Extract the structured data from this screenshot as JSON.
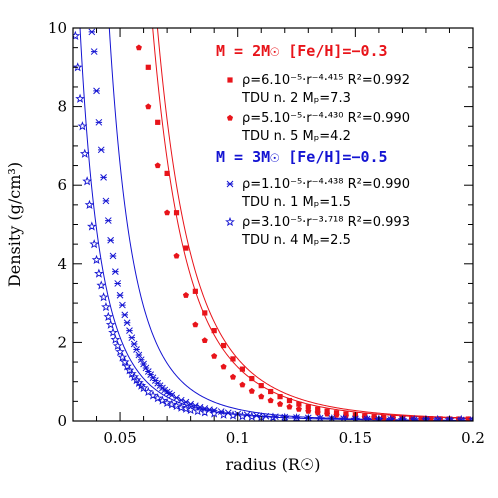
{
  "chart_data": {
    "type": "scatter",
    "xlabel": "radius (R☉)",
    "ylabel": "Density (g/cm³)",
    "xlim": [
      0.03,
      0.2
    ],
    "ylim": [
      0,
      10
    ],
    "xticks": [
      0.05,
      0.1,
      0.15,
      0.2
    ],
    "xtick_labels": [
      "0.05",
      "0.1",
      "0.15",
      "0.2"
    ],
    "yticks": [
      0,
      2,
      4,
      6,
      8,
      10
    ],
    "ytick_labels": [
      "0",
      "2",
      "4",
      "6",
      "8",
      "10"
    ],
    "grid": false,
    "legend_placement": "top-right",
    "colors": {
      "red": "#e8141a",
      "blue": "#1414d2"
    },
    "groups": [
      {
        "header": "M = 2M☉ [Fe/H]=−0.3",
        "color": "#e8141a"
      },
      {
        "header": "M = 3M☉ [Fe/H]=−0.5",
        "color": "#1414d2"
      }
    ],
    "series": [
      {
        "name": "TDU n. 2 Mₚ=7.3",
        "fit_label": "ρ=6.10⁻⁵·r⁻⁴·⁴¹⁵ R²=0.992",
        "tdu_label": "TDU n. 2 Mₚ=7.3",
        "marker": "square",
        "color": "#e8141a",
        "fit": {
          "a": 6.1e-05,
          "b": 4.415
        },
        "x": [
          0.062,
          0.066,
          0.07,
          0.074,
          0.078,
          0.082,
          0.086,
          0.09,
          0.094,
          0.098,
          0.102,
          0.106,
          0.11,
          0.114,
          0.118,
          0.122,
          0.126,
          0.13,
          0.134,
          0.138,
          0.142,
          0.146,
          0.15,
          0.154,
          0.158,
          0.162,
          0.166,
          0.17,
          0.174,
          0.178,
          0.182,
          0.186,
          0.19,
          0.194,
          0.198
        ],
        "y": [
          9.0,
          7.6,
          6.3,
          5.3,
          4.4,
          3.3,
          2.75,
          2.3,
          1.92,
          1.58,
          1.32,
          1.08,
          0.9,
          0.75,
          0.62,
          0.52,
          0.43,
          0.36,
          0.3,
          0.25,
          0.21,
          0.18,
          0.15,
          0.13,
          0.11,
          0.1,
          0.09,
          0.08,
          0.07,
          0.065,
          0.06,
          0.055,
          0.05,
          0.05,
          0.05
        ]
      },
      {
        "name": "TDU n. 5 Mₚ=4.2",
        "fit_label": "ρ=5.10⁻⁵·r⁻⁴·⁴³⁰ R²=0.990",
        "tdu_label": "TDU n. 5 Mₚ=4.2",
        "marker": "pentagon",
        "color": "#e8141a",
        "fit": {
          "a": 5.1e-05,
          "b": 4.43
        },
        "x": [
          0.058,
          0.062,
          0.066,
          0.07,
          0.074,
          0.078,
          0.082,
          0.086,
          0.09,
          0.094,
          0.098,
          0.102,
          0.106,
          0.11,
          0.114,
          0.118,
          0.122,
          0.126,
          0.13,
          0.134,
          0.138,
          0.142,
          0.146,
          0.15,
          0.154,
          0.158,
          0.162,
          0.166,
          0.17,
          0.174,
          0.178,
          0.182,
          0.186,
          0.19,
          0.194,
          0.198
        ],
        "y": [
          9.5,
          8.0,
          6.5,
          5.3,
          4.2,
          3.2,
          2.45,
          2.05,
          1.65,
          1.38,
          1.12,
          0.92,
          0.76,
          0.62,
          0.52,
          0.43,
          0.36,
          0.3,
          0.25,
          0.21,
          0.18,
          0.15,
          0.13,
          0.11,
          0.1,
          0.09,
          0.08,
          0.07,
          0.06,
          0.055,
          0.05,
          0.045,
          0.04,
          0.04,
          0.04,
          0.04
        ]
      },
      {
        "name": "TDU n. 1 Mₚ=1.5",
        "fit_label": "ρ=1.10⁻⁵·r⁻⁴·⁴³⁸ R²=0.990",
        "tdu_label": "TDU n. 1 Mₚ=1.5",
        "marker": "star4",
        "color": "#1414d2",
        "fit": {
          "a": 1.1e-05,
          "b": 4.438
        },
        "x": [
          0.038,
          0.039,
          0.04,
          0.041,
          0.042,
          0.043,
          0.044,
          0.045,
          0.046,
          0.047,
          0.048,
          0.049,
          0.05,
          0.051,
          0.052,
          0.053,
          0.054,
          0.055,
          0.056,
          0.057,
          0.058,
          0.059,
          0.06,
          0.061,
          0.062,
          0.063,
          0.064,
          0.065,
          0.066,
          0.067,
          0.068,
          0.069,
          0.07,
          0.071,
          0.072,
          0.074,
          0.076,
          0.078,
          0.08,
          0.082,
          0.084,
          0.086,
          0.088,
          0.09,
          0.093,
          0.096,
          0.1,
          0.104,
          0.108,
          0.112,
          0.116,
          0.12,
          0.125,
          0.13,
          0.135,
          0.14,
          0.145,
          0.15,
          0.155,
          0.16,
          0.165,
          0.17,
          0.175,
          0.18,
          0.185,
          0.19,
          0.195,
          0.2
        ],
        "y": [
          9.9,
          9.4,
          8.4,
          7.6,
          6.9,
          6.2,
          5.6,
          5.1,
          4.6,
          4.2,
          3.8,
          3.5,
          3.2,
          2.95,
          2.7,
          2.5,
          2.3,
          2.12,
          1.96,
          1.82,
          1.68,
          1.56,
          1.45,
          1.35,
          1.26,
          1.18,
          1.1,
          1.03,
          0.96,
          0.9,
          0.84,
          0.79,
          0.74,
          0.7,
          0.66,
          0.59,
          0.53,
          0.48,
          0.43,
          0.39,
          0.35,
          0.32,
          0.29,
          0.27,
          0.24,
          0.21,
          0.18,
          0.16,
          0.14,
          0.12,
          0.11,
          0.1,
          0.09,
          0.08,
          0.07,
          0.065,
          0.06,
          0.055,
          0.05,
          0.045,
          0.04,
          0.04,
          0.035,
          0.035,
          0.03,
          0.03,
          0.03,
          0.03
        ]
      },
      {
        "name": "TDU n. 4 Mₚ=2.5",
        "fit_label": "ρ=3.10⁻⁵·r⁻³·⁷¹⁸ R²=0.993",
        "tdu_label": "TDU n. 4 Mₚ=2.5",
        "marker": "star5",
        "color": "#1414d2",
        "fit": {
          "a": 3.1e-05,
          "b": 3.718
        },
        "x": [
          0.031,
          0.032,
          0.033,
          0.034,
          0.035,
          0.036,
          0.037,
          0.038,
          0.039,
          0.04,
          0.041,
          0.042,
          0.043,
          0.044,
          0.045,
          0.046,
          0.047,
          0.048,
          0.049,
          0.05,
          0.051,
          0.052,
          0.053,
          0.054,
          0.055,
          0.056,
          0.057,
          0.058,
          0.059,
          0.06,
          0.062,
          0.064,
          0.066,
          0.068,
          0.07,
          0.072,
          0.074,
          0.076,
          0.078,
          0.08,
          0.083,
          0.086,
          0.09,
          0.094,
          0.098,
          0.102,
          0.106,
          0.11,
          0.115,
          0.12,
          0.125,
          0.13,
          0.135,
          0.14,
          0.145,
          0.15,
          0.155,
          0.16,
          0.165,
          0.17,
          0.175,
          0.18,
          0.185,
          0.19,
          0.195,
          0.2
        ],
        "y": [
          9.8,
          9.0,
          8.2,
          7.5,
          6.8,
          6.1,
          5.5,
          4.95,
          4.5,
          4.1,
          3.75,
          3.45,
          3.15,
          2.9,
          2.65,
          2.45,
          2.25,
          2.07,
          1.91,
          1.76,
          1.62,
          1.5,
          1.39,
          1.29,
          1.2,
          1.12,
          1.04,
          0.97,
          0.9,
          0.84,
          0.74,
          0.65,
          0.58,
          0.52,
          0.46,
          0.42,
          0.38,
          0.34,
          0.31,
          0.28,
          0.25,
          0.22,
          0.19,
          0.16,
          0.14,
          0.12,
          0.11,
          0.1,
          0.09,
          0.08,
          0.07,
          0.06,
          0.055,
          0.05,
          0.045,
          0.04,
          0.04,
          0.035,
          0.035,
          0.03,
          0.03,
          0.03,
          0.03,
          0.03,
          0.03,
          0.03
        ]
      }
    ]
  }
}
